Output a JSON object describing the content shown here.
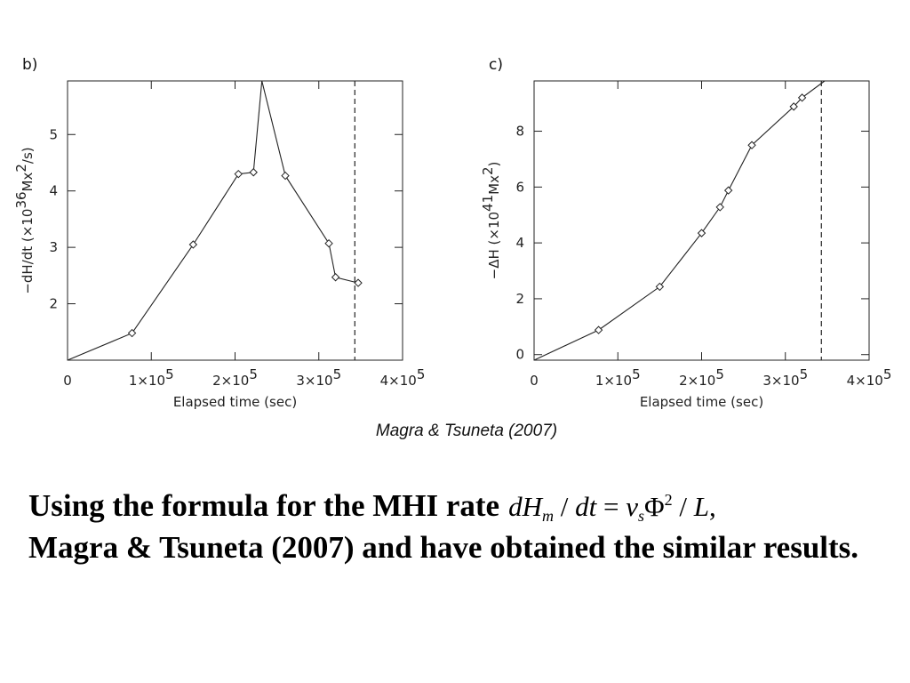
{
  "chart_data": [
    {
      "type": "line",
      "panel_label": "b)",
      "title": "",
      "xlabel": "Elapsed time (sec)",
      "ylabel_parts": [
        "−dH/dt (×10",
        "36",
        "Mx",
        "2",
        "/s)"
      ],
      "xlim": [
        0,
        400000
      ],
      "ylim": [
        1.0,
        5.95
      ],
      "x_ticks": [
        0,
        100000,
        200000,
        300000,
        400000
      ],
      "x_tick_labels": [
        {
          "base": "0",
          "exp": ""
        },
        {
          "base": "1×10",
          "exp": "5"
        },
        {
          "base": "2×10",
          "exp": "5"
        },
        {
          "base": "3×10",
          "exp": "5"
        },
        {
          "base": "4×10",
          "exp": "5"
        }
      ],
      "y_ticks": [
        2,
        3,
        4,
        5
      ],
      "y_tick_labels": [
        "2",
        "3",
        "4",
        "5"
      ],
      "series": [
        {
          "x": [
            0,
            77000,
            150000,
            204000,
            222000,
            232000,
            260000,
            312000,
            320000,
            347000
          ],
          "y": [
            1.0,
            1.48,
            3.05,
            4.3,
            4.33,
            5.95,
            4.27,
            3.07,
            2.47,
            2.37
          ]
        }
      ],
      "marker": "diamond",
      "vline_x": 343000,
      "grid": false,
      "legend": "none"
    },
    {
      "type": "line",
      "panel_label": "c)",
      "title": "",
      "xlabel": "Elapsed time (sec)",
      "ylabel_parts": [
        "−ΔH (×10",
        "41",
        "Mx",
        "2",
        ")"
      ],
      "xlim": [
        0,
        400000
      ],
      "ylim": [
        -0.2,
        9.8
      ],
      "x_ticks": [
        0,
        100000,
        200000,
        300000,
        400000
      ],
      "x_tick_labels": [
        {
          "base": "0",
          "exp": ""
        },
        {
          "base": "1×10",
          "exp": "5"
        },
        {
          "base": "2×10",
          "exp": "5"
        },
        {
          "base": "3×10",
          "exp": "5"
        },
        {
          "base": "4×10",
          "exp": "5"
        }
      ],
      "y_ticks": [
        0,
        2,
        4,
        6,
        8
      ],
      "y_tick_labels": [
        "0",
        "2",
        "4",
        "6",
        "8"
      ],
      "series": [
        {
          "x": [
            0,
            77000,
            150000,
            200000,
            222000,
            232000,
            260000,
            310000,
            320000,
            347000
          ],
          "y": [
            -0.2,
            0.88,
            2.43,
            4.35,
            5.28,
            5.88,
            7.5,
            8.88,
            9.2,
            9.8
          ]
        }
      ],
      "marker": "diamond",
      "vline_x": 343000,
      "grid": false,
      "legend": "none"
    }
  ],
  "citation": "Magra & Tsuneta (2007)",
  "body": {
    "line1": "Using the formula for the MHI rate",
    "line2": "Magra & Tsuneta (2007) and have obtained the similar results."
  },
  "formula": {
    "dH": "dH",
    "sub_m": "m",
    "mid": " / ",
    "dt": "dt",
    "eq": " = ",
    "v": "v",
    "sub_s": "s",
    "phi": "Φ",
    "sup_2": "2",
    "slash": " / ",
    "L": "L",
    "comma": ","
  }
}
